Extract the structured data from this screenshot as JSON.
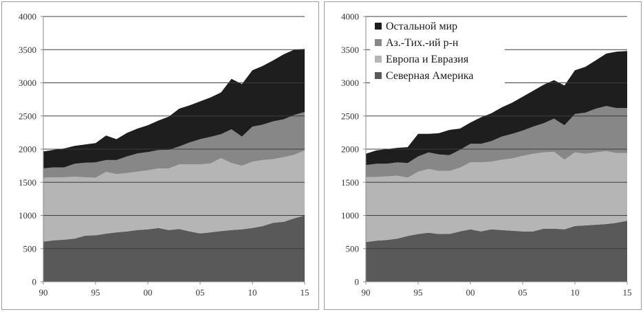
{
  "chart_data": [
    {
      "type": "area",
      "stacked": true,
      "x": [
        "90",
        "91",
        "92",
        "93",
        "94",
        "95",
        "96",
        "97",
        "98",
        "99",
        "00",
        "01",
        "02",
        "03",
        "04",
        "05",
        "06",
        "07",
        "08",
        "09",
        "10",
        "11",
        "12",
        "13",
        "14",
        "15"
      ],
      "x_tick_labels": [
        "90",
        "95",
        "00",
        "05",
        "10",
        "15"
      ],
      "ylim": [
        0,
        4000
      ],
      "y_tick_labels": [
        "0",
        "500",
        "1000",
        "1500",
        "2000",
        "2500",
        "3000",
        "3500",
        "4000"
      ],
      "grid": true,
      "legend": "none",
      "series": [
        {
          "name": "Северная Америка",
          "color": "#595959",
          "values": [
            605,
            625,
            635,
            650,
            695,
            700,
            725,
            745,
            760,
            780,
            790,
            810,
            780,
            795,
            760,
            730,
            745,
            765,
            780,
            790,
            810,
            840,
            890,
            905,
            955,
            1000
          ]
        },
        {
          "name": "Европа и Евразия",
          "color": "#b5b5b5",
          "values": [
            965,
            950,
            940,
            935,
            880,
            870,
            930,
            880,
            880,
            880,
            890,
            900,
            930,
            975,
            1010,
            1040,
            1040,
            1100,
            1010,
            960,
            1000,
            995,
            960,
            975,
            960,
            980
          ]
        },
        {
          "name": "Аз.-Тих.-ий р-н",
          "color": "#878787",
          "values": [
            140,
            150,
            150,
            195,
            220,
            230,
            180,
            210,
            250,
            275,
            275,
            275,
            280,
            270,
            330,
            380,
            400,
            360,
            510,
            440,
            530,
            535,
            570,
            570,
            600,
            580
          ]
        },
        {
          "name": "Остальной мир",
          "color": "#1e1e1e",
          "values": [
            255,
            265,
            285,
            270,
            275,
            290,
            370,
            315,
            355,
            375,
            405,
            445,
            500,
            570,
            560,
            570,
            595,
            630,
            760,
            790,
            850,
            885,
            920,
            980,
            985,
            950
          ]
        }
      ]
    },
    {
      "type": "area",
      "stacked": true,
      "x": [
        "90",
        "91",
        "92",
        "93",
        "94",
        "95",
        "96",
        "97",
        "98",
        "99",
        "00",
        "01",
        "02",
        "03",
        "04",
        "05",
        "06",
        "07",
        "08",
        "09",
        "10",
        "11",
        "12",
        "13",
        "14",
        "15"
      ],
      "x_tick_labels": [
        "90",
        "95",
        "00",
        "05",
        "10",
        "15"
      ],
      "ylim": [
        0,
        4000
      ],
      "y_tick_labels": [
        "0",
        "500",
        "1000",
        "1500",
        "2000",
        "2500",
        "3000",
        "3500",
        "4000"
      ],
      "grid": true,
      "legend": "top-left",
      "series": [
        {
          "name": "Северная Америка",
          "color": "#595959",
          "values": [
            600,
            620,
            630,
            650,
            690,
            720,
            740,
            720,
            720,
            760,
            790,
            760,
            790,
            780,
            770,
            760,
            760,
            800,
            800,
            790,
            840,
            850,
            860,
            870,
            890,
            920
          ]
        },
        {
          "name": "Европа и Евразия",
          "color": "#b5b5b5",
          "values": [
            980,
            960,
            960,
            950,
            880,
            940,
            960,
            950,
            950,
            960,
            1010,
            1040,
            1020,
            1060,
            1090,
            1140,
            1170,
            1150,
            1160,
            1050,
            1110,
            1080,
            1090,
            1100,
            1050,
            1020
          ]
        },
        {
          "name": "Аз.-Тих.-ий р-н",
          "color": "#878787",
          "values": [
            180,
            200,
            190,
            200,
            220,
            230,
            250,
            250,
            240,
            270,
            280,
            280,
            310,
            350,
            370,
            380,
            410,
            440,
            500,
            520,
            580,
            620,
            660,
            680,
            680,
            680
          ]
        },
        {
          "name": "Остальной мир",
          "color": "#1e1e1e",
          "values": [
            170,
            200,
            220,
            220,
            240,
            340,
            280,
            320,
            380,
            320,
            320,
            400,
            420,
            440,
            470,
            510,
            540,
            580,
            580,
            600,
            660,
            690,
            730,
            790,
            850,
            860
          ]
        }
      ]
    }
  ],
  "legend": {
    "items": [
      {
        "label": "Остальной мир",
        "color": "#1e1e1e"
      },
      {
        "label": "Аз.-Тих.-ий р-н",
        "color": "#878787"
      },
      {
        "label": "Европа и Евразия",
        "color": "#b5b5b5"
      },
      {
        "label": "Северная Америка",
        "color": "#595959"
      }
    ]
  }
}
